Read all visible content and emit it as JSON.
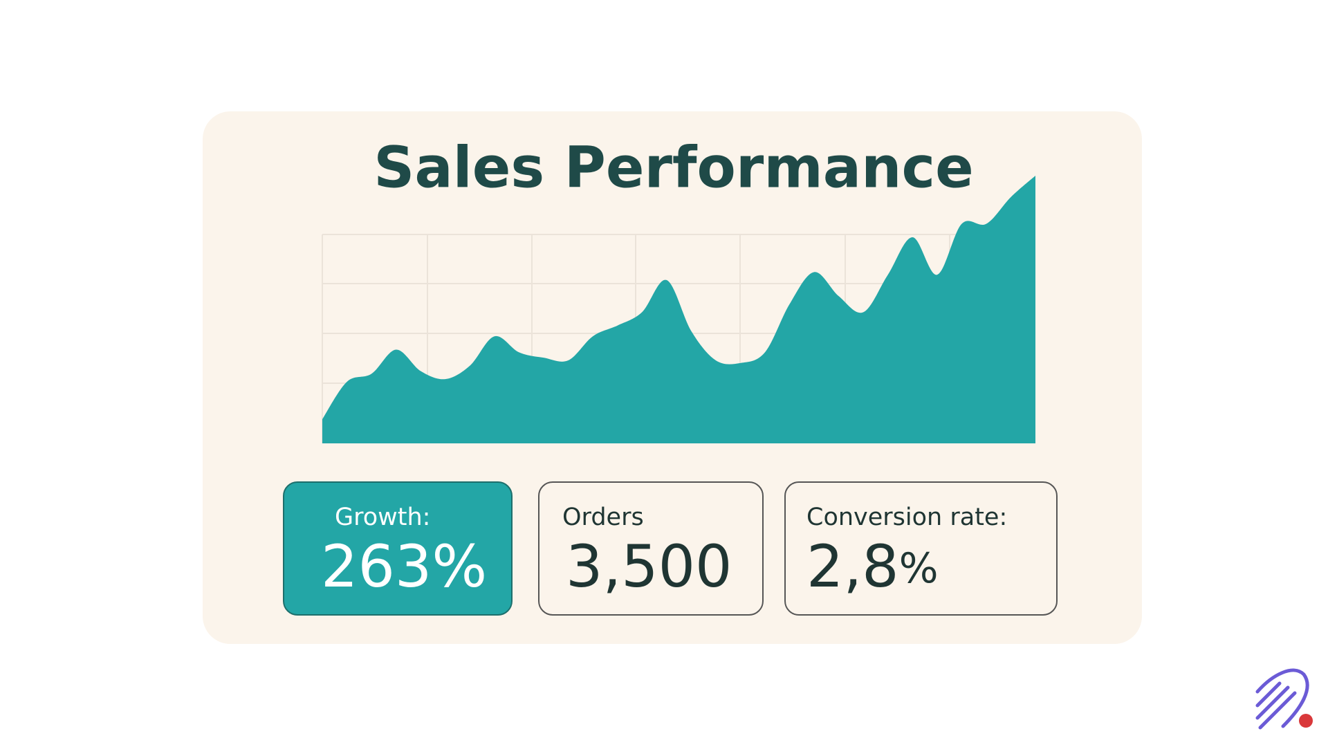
{
  "chart_data": {
    "type": "area",
    "title": "Sales Performance",
    "values": [
      9,
      23,
      26,
      35,
      27,
      24,
      29,
      40,
      34,
      32,
      31,
      40,
      44,
      49,
      61,
      42,
      31,
      30,
      34,
      52,
      64,
      55,
      49,
      63,
      77,
      63,
      82,
      82,
      92,
      100
    ],
    "color": "#23a6a6",
    "ylim": [
      0,
      100
    ],
    "grid": true
  },
  "stats": [
    {
      "label": "Growth:",
      "value": "263%"
    },
    {
      "label": "Orders",
      "value": "3,500"
    },
    {
      "label": "Conversion rate:",
      "value": "2,8",
      "unit": "%"
    }
  ]
}
